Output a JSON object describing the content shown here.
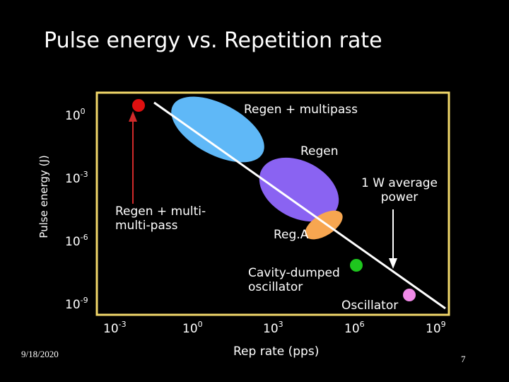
{
  "title": "Pulse energy vs. Repetition rate",
  "y_axis_label": "Pulse energy (J)",
  "x_axis_label": "Rep rate (pps)",
  "y_ticks": [
    {
      "base": "10",
      "exp": "0"
    },
    {
      "base": "10",
      "exp": "-3"
    },
    {
      "base": "10",
      "exp": "-6"
    },
    {
      "base": "10",
      "exp": "-9"
    }
  ],
  "x_ticks": [
    {
      "base": "10",
      "exp": "-3"
    },
    {
      "base": "10",
      "exp": "0"
    },
    {
      "base": "10",
      "exp": "3"
    },
    {
      "base": "10",
      "exp": "6"
    },
    {
      "base": "10",
      "exp": "9"
    }
  ],
  "labels": {
    "regen_multipass": "Regen + multipass",
    "regen": "Regen",
    "one_watt_line1": "1 W average",
    "one_watt_line2": "power",
    "regen_multi_multi_line1": "Regen + multi-",
    "regen_multi_multi_line2": "multi-pass",
    "rega": "Reg.A",
    "cavity_line1": "Cavity-dumped",
    "cavity_line2": "oscillator",
    "oscillator": "Oscillator"
  },
  "footer": {
    "date": "9/18/2020",
    "page_number": "7"
  },
  "colors": {
    "background": "#000000",
    "frame": "#f2d86a",
    "regen_multipass_ellipse": "#5fb8f7",
    "regen_ellipse": "#8a63f2",
    "rega_ellipse": "#f7a650",
    "red_dot": "#e01010",
    "green_dot": "#1ec61e",
    "pink_dot": "#f08ae8",
    "power_line": "#ffffff"
  }
}
